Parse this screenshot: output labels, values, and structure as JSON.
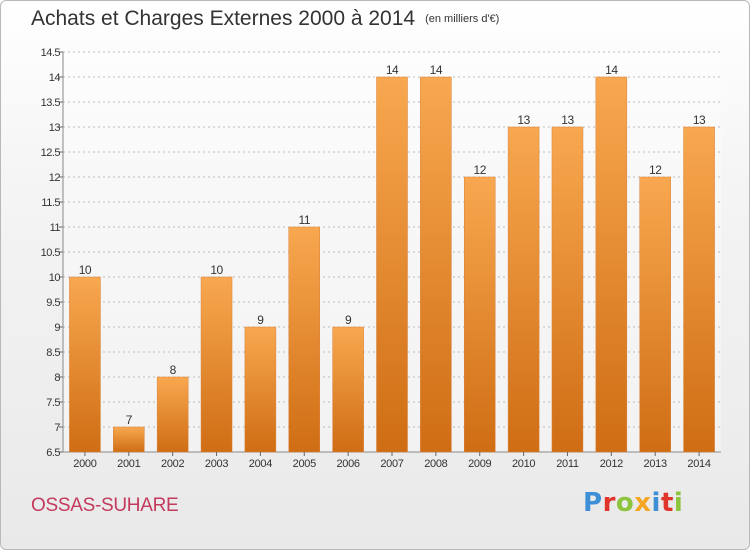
{
  "header": {
    "title": "Achats et Charges Externes 2000 à 2014",
    "unit": "(en milliers d'€)"
  },
  "footer": {
    "commune": "OSSAS-SUHARE",
    "logo_letters": [
      {
        "char": "P",
        "color": "#3f8fd6"
      },
      {
        "char": "r",
        "color": "#e0352b"
      },
      {
        "char": "o",
        "color": "#8cc43d"
      },
      {
        "char": "x",
        "color": "#f5a623"
      },
      {
        "char": "i",
        "color": "#3f8fd6"
      },
      {
        "char": "t",
        "color": "#e0352b"
      },
      {
        "char": "i",
        "color": "#8cc43d"
      }
    ]
  },
  "colors": {
    "bar_top": "#f8a850",
    "bar_bottom": "#cf6d14",
    "grid": "#bbbbbb",
    "axis_text": "#333333",
    "commune": "#c43a5c"
  },
  "chart_data": {
    "type": "bar",
    "title": "Achats et Charges Externes 2000 à 2014",
    "subtitle": "(en milliers d'€)",
    "xlabel": "",
    "ylabel": "",
    "categories": [
      "2000",
      "2001",
      "2002",
      "2003",
      "2004",
      "2005",
      "2006",
      "2007",
      "2008",
      "2009",
      "2010",
      "2011",
      "2012",
      "2013",
      "2014"
    ],
    "values": [
      10,
      7,
      8,
      10,
      9,
      11,
      9,
      14,
      14,
      12,
      13,
      13,
      14,
      12,
      13
    ],
    "data_labels": [
      "10",
      "7",
      "8",
      "10",
      "9",
      "11",
      "9",
      "14",
      "14",
      "12",
      "13",
      "13",
      "14",
      "12",
      "13"
    ],
    "ylim": [
      6.5,
      14.5
    ],
    "yticks": [
      6.5,
      7,
      7.5,
      8,
      8.5,
      9,
      9.5,
      10,
      10.5,
      11,
      11.5,
      12,
      12.5,
      13,
      13.5,
      14,
      14.5
    ],
    "ytick_labels": [
      "6.5",
      "7",
      "7.5",
      "8",
      "8.5",
      "9",
      "9.5",
      "10",
      "10.5",
      "11",
      "11.5",
      "12",
      "12.5",
      "13",
      "13.5",
      "14",
      "14.5"
    ],
    "grid": true,
    "grid_style": "dashed horizontal",
    "legend": "none"
  }
}
